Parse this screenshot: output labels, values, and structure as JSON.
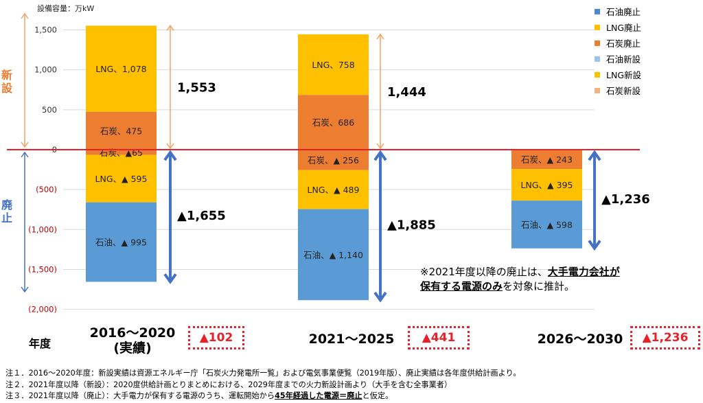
{
  "chart_data": {
    "type": "bar",
    "stacked": true,
    "unit_label": "設備容量：万kW",
    "ylim": [
      -2000,
      1600
    ],
    "y_ticks": [
      {
        "value": 1500,
        "label": "1,500"
      },
      {
        "value": 1000,
        "label": "1,000"
      },
      {
        "value": 500,
        "label": "500"
      },
      {
        "value": 0,
        "label": "0"
      },
      {
        "value": -500,
        "label": "(500)"
      },
      {
        "value": -1000,
        "label": "(1,000)"
      },
      {
        "value": -1500,
        "label": "(1,500)"
      },
      {
        "value": -2000,
        "label": "(2,000)"
      }
    ],
    "side_labels": {
      "new": "新設",
      "retire": "廃止"
    },
    "x_axis_label": "年度",
    "categories": [
      "2016～2020\n(実績)",
      "2021～2025",
      "2026～2030"
    ],
    "series": [
      {
        "name": "石油廃止",
        "color": "#5B9BD5",
        "values": [
          -995,
          -1140,
          -598
        ],
        "labels": [
          "石油、▲ 995",
          "石油、▲ 1,140",
          "石油、▲ 598"
        ]
      },
      {
        "name": "LNG廃止",
        "color": "#FFC000",
        "values": [
          -595,
          -489,
          -395
        ],
        "labels": [
          "LNG、▲ 595",
          "LNG、▲ 489",
          "LNG、▲ 395"
        ]
      },
      {
        "name": "石炭廃止",
        "color": "#ED7D31",
        "values": [
          -65,
          -256,
          -243
        ],
        "labels": [
          "石炭、▲65",
          "石炭、▲ 256",
          "石炭、▲ 243"
        ]
      },
      {
        "name": "石油新設",
        "color": "#9DC3E6",
        "values": [
          0,
          0,
          0
        ],
        "labels": [
          "",
          "",
          ""
        ]
      },
      {
        "name": "LNG新設",
        "color": "#FFC000",
        "values": [
          1078,
          758,
          0
        ],
        "labels": [
          "LNG、1,078",
          "LNG、758",
          ""
        ]
      },
      {
        "name": "石炭新設",
        "color": "#ED7D31",
        "values": [
          475,
          686,
          0
        ],
        "labels": [
          "石炭、475",
          "石炭、686",
          ""
        ]
      }
    ],
    "totals_new": [
      1553,
      1444,
      null
    ],
    "totals_new_labels": [
      "1,553",
      "1,444",
      ""
    ],
    "totals_retire": [
      -1655,
      -1885,
      -1236
    ],
    "totals_retire_labels": [
      "▲1,655",
      "▲1,885",
      "▲1,236"
    ],
    "net": [
      "▲102",
      "▲441",
      "▲1,236"
    ],
    "legend": [
      {
        "label": "石油廃止",
        "color": "#4E88D0"
      },
      {
        "label": "LNG廃止",
        "color": "#FFC000"
      },
      {
        "label": "石炭廃止",
        "color": "#ED7D31"
      },
      {
        "label": "石油新設",
        "color": "#9DC3E6"
      },
      {
        "label": "LNG新設",
        "color": "#FFC000"
      },
      {
        "label": "石炭新設",
        "color": "#F4B183"
      }
    ],
    "legend_position": "top-right",
    "zero_line_color": "#E8202A"
  },
  "period_lines": [
    [
      "2016～2020",
      "(実績)"
    ],
    [
      "2021～2025"
    ],
    [
      "2026～2030"
    ]
  ],
  "remark": {
    "line1_pre": "※2021年度以降の廃止は、",
    "line1_strong": "大手電力会社が",
    "line2_strong": "保有する電源のみ",
    "line2_post": "を対象に推計。"
  },
  "notes": {
    "n1": "注１．2016～2020年度：新設実績は資源エネルギー庁「石炭火力発電所一覧」および電気事業便覧（2019年版）、廃止実績は各年度供給計画より。",
    "n2": "注２．2021年度以降（新設）：2020度供給計画とりまとめにおける、2029年度までの火力新設計画より（大手を含む全事業者）",
    "n3_pre": "注３．2021年度以降（廃止）：大手電力が保有する電源のうち、運転開始から",
    "n3_strong": "45年経過した電源＝廃止",
    "n3_post": "と仮定。"
  }
}
